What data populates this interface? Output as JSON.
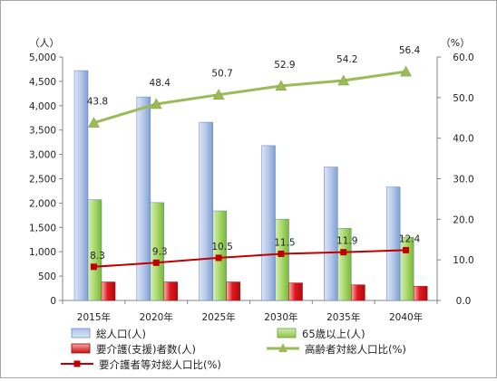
{
  "chart_data": {
    "type": "bar",
    "categories": [
      "2015年",
      "2020年",
      "2025年",
      "2030年",
      "2035年",
      "2040年"
    ],
    "left_axis": {
      "unit": "（人）",
      "ylim": [
        0,
        5000
      ],
      "ticks": [
        "0",
        "500",
        "1,000",
        "1,500",
        "2,000",
        "2,500",
        "3,000",
        "3,500",
        "4,000",
        "4,500",
        "5,000"
      ]
    },
    "right_axis": {
      "unit": "（%）",
      "ylim": [
        0,
        60
      ],
      "ticks": [
        "0.0",
        "10.0",
        "20.0",
        "30.0",
        "40.0",
        "50.0",
        "60.0"
      ]
    },
    "series": [
      {
        "name": "総人口(人)",
        "type": "bar",
        "axis": "left",
        "color": "#8eaadb",
        "values": [
          4720,
          4180,
          3660,
          3180,
          2740,
          2330
        ]
      },
      {
        "name": "65歳以上(人)",
        "type": "bar",
        "axis": "left",
        "color": "#8dc63f",
        "values": [
          2070,
          2010,
          1840,
          1670,
          1480,
          1300
        ]
      },
      {
        "name": "要介護(支援)者数(人)",
        "type": "bar",
        "axis": "left",
        "color": "#e0191f",
        "values": [
          380,
          380,
          380,
          360,
          320,
          290
        ]
      },
      {
        "name": "高齢者対総人口比(%)",
        "type": "line",
        "axis": "right",
        "color": "#9bbb59",
        "marker": "triangle",
        "values": [
          43.8,
          48.4,
          50.7,
          52.9,
          54.2,
          56.4
        ],
        "labels": [
          "43.8",
          "48.4",
          "50.7",
          "52.9",
          "54.2",
          "56.4"
        ]
      },
      {
        "name": "要介護者等対総人口比(%)",
        "type": "line",
        "axis": "right",
        "color": "#c00000",
        "marker": "square",
        "values": [
          8.3,
          9.3,
          10.5,
          11.5,
          11.9,
          12.4
        ],
        "labels": [
          "8.3",
          "9.3",
          "10.5",
          "11.5",
          "11.9",
          "12.4"
        ]
      }
    ],
    "legend_position": "bottom",
    "grid": false
  }
}
